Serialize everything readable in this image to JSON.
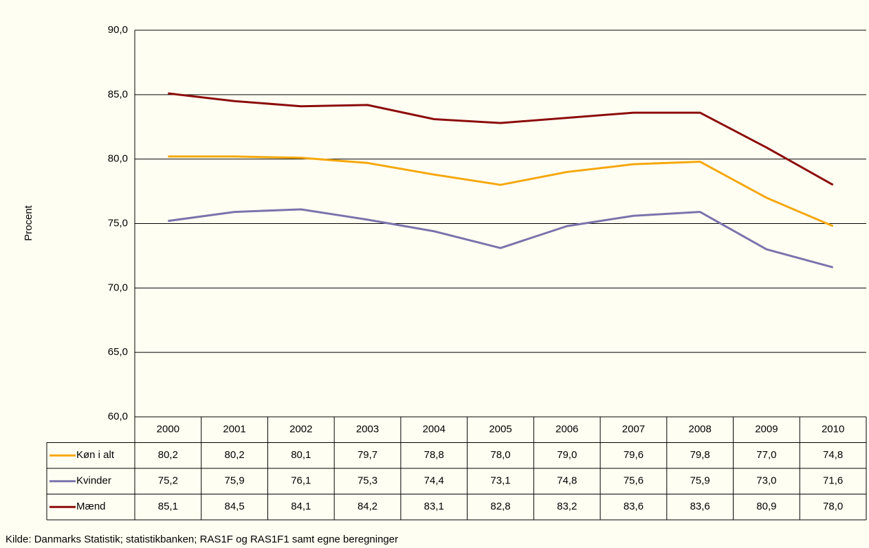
{
  "chart_data": {
    "type": "line",
    "y_axis_label": "Procent",
    "source": "Kilde: Danmarks Statistik; statistikbanken; RAS1F og RAS1F1 samt egne beregninger",
    "categories": [
      "2000",
      "2001",
      "2002",
      "2003",
      "2004",
      "2005",
      "2006",
      "2007",
      "2008",
      "2009",
      "2010"
    ],
    "series": [
      {
        "name": "Køn i alt",
        "color": "#f5a70a",
        "values": [
          80.2,
          80.2,
          80.1,
          79.7,
          78.8,
          78.0,
          79.0,
          79.6,
          79.8,
          77.0,
          74.8
        ],
        "value_labels": [
          "80,2",
          "80,2",
          "80,1",
          "79,7",
          "78,8",
          "78,0",
          "79,0",
          "79,6",
          "79,8",
          "77,0",
          "74,8"
        ]
      },
      {
        "name": "Kvinder",
        "color": "#7a73ad",
        "values": [
          75.2,
          75.9,
          76.1,
          75.3,
          74.4,
          73.1,
          74.8,
          75.6,
          75.9,
          73.0,
          71.6
        ],
        "value_labels": [
          "75,2",
          "75,9",
          "76,1",
          "75,3",
          "74,4",
          "73,1",
          "74,8",
          "75,6",
          "75,9",
          "73,0",
          "71,6"
        ]
      },
      {
        "name": "Mænd",
        "color": "#8b0a0a",
        "values": [
          85.1,
          84.5,
          84.1,
          84.2,
          83.1,
          82.8,
          83.2,
          83.6,
          83.6,
          80.9,
          78.0
        ],
        "value_labels": [
          "85,1",
          "84,5",
          "84,1",
          "84,2",
          "83,1",
          "82,8",
          "83,2",
          "83,6",
          "83,6",
          "80,9",
          "78,0"
        ]
      }
    ],
    "ylim": [
      60,
      90
    ],
    "yticks": [
      {
        "value": 60,
        "label": "60,0"
      },
      {
        "value": 65,
        "label": "65,0"
      },
      {
        "value": 70,
        "label": "70,0"
      },
      {
        "value": 75,
        "label": "75,0"
      },
      {
        "value": 80,
        "label": "80,0"
      },
      {
        "value": 85,
        "label": "85,0"
      },
      {
        "value": 90,
        "label": "90,0"
      }
    ],
    "grid": true
  }
}
